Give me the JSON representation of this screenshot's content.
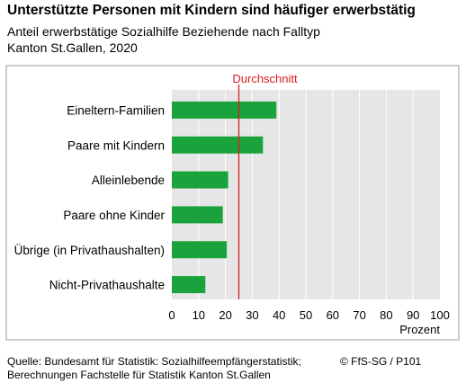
{
  "title": "Unterstützte Personen mit Kindern sind häufiger erwerbstätig",
  "subtitle_line1": "Anteil erwerbstätige Sozialhilfe Beziehende nach Falltyp",
  "subtitle_line2": "Kanton St.Gallen, 2020",
  "source_line1": "Quelle: Bundesamt für Statistik: Sozialhilfeempfängerstatistik;",
  "source_line2": "Berechnungen Fachstelle für Statistik Kanton St.Gallen",
  "copyright": "© FfS-SG / P101",
  "colors": {
    "bar": "#1aa33c",
    "reference": "#d81e1e",
    "plot_bg": "#e6e6e6",
    "grid": "#ffffff"
  },
  "chart_data": {
    "type": "bar",
    "orientation": "horizontal",
    "categories": [
      "Eineltern-Familien",
      "Paare mit Kindern",
      "Alleinlebende",
      "Paare ohne Kinder",
      "Übrige (in Privathaushalten)",
      "Nicht-Privathaushalte"
    ],
    "values": [
      39,
      34,
      21,
      19,
      20.5,
      12.5
    ],
    "xlabel": "Prozent",
    "xlim": [
      0,
      100
    ],
    "xticks": [
      "0",
      "10",
      "20",
      "30",
      "40",
      "50",
      "60",
      "70",
      "80",
      "90",
      "100"
    ],
    "grid": true,
    "reference_line": {
      "label": "Durchschnitt",
      "value": 25
    }
  }
}
